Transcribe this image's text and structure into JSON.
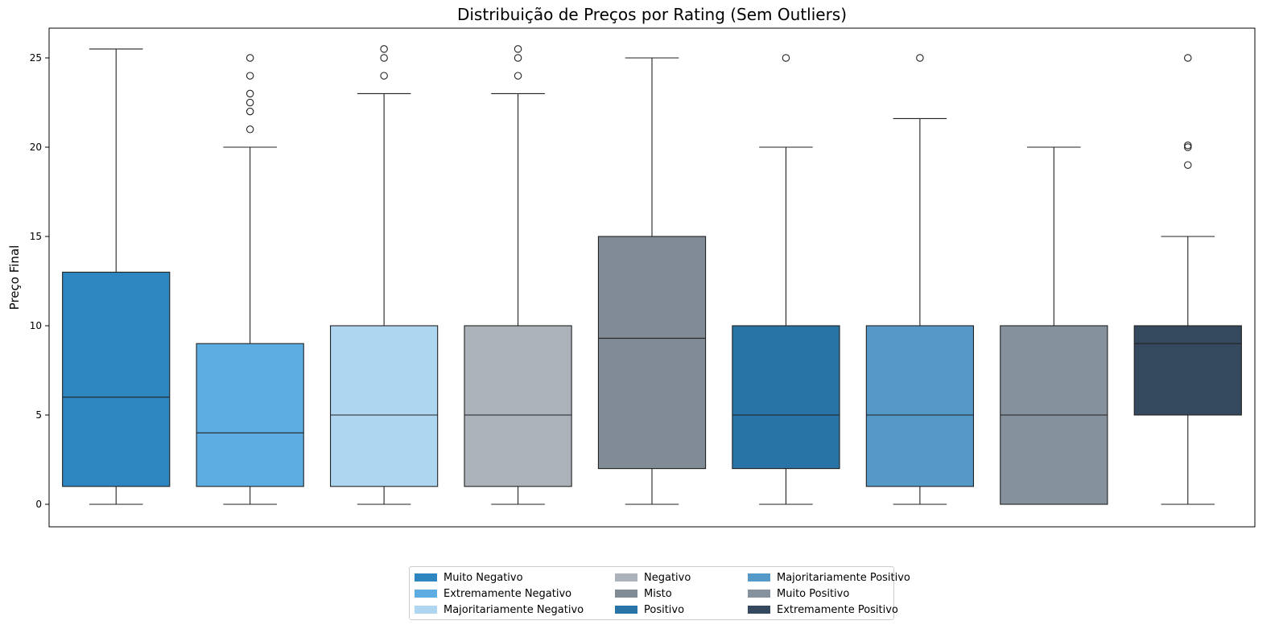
{
  "chart_data": {
    "type": "boxplot",
    "title": "Distribuição de Preços por Rating (Sem Outliers)",
    "ylabel": "Preço Final",
    "xlabel": "",
    "ylim": [
      -1.2,
      26.7
    ],
    "yticks": [
      0,
      5,
      10,
      15,
      20,
      25
    ],
    "grid": false,
    "legend_position": "bottom-center",
    "series": [
      {
        "name": "Muito Negativo",
        "color": "#2e86c1",
        "whisker_low": 0,
        "q1": 1,
        "median": 6,
        "q3": 13,
        "whisker_high": 25.5,
        "outliers": []
      },
      {
        "name": "Extremamente Negativo",
        "color": "#5dade2",
        "whisker_low": 0,
        "q1": 1,
        "median": 4,
        "q3": 9,
        "whisker_high": 20,
        "outliers": [
          21,
          22,
          22.5,
          23,
          24,
          25
        ]
      },
      {
        "name": "Majoritariamente Negativo",
        "color": "#aed6f1",
        "whisker_low": 0,
        "q1": 1,
        "median": 5,
        "q3": 10,
        "whisker_high": 23,
        "outliers": [
          24,
          25,
          25.5
        ]
      },
      {
        "name": "Negativo",
        "color": "#abb2b9",
        "whisker_low": 0,
        "q1": 1,
        "median": 5,
        "q3": 10,
        "whisker_high": 23,
        "outliers": [
          24,
          25,
          25.5
        ]
      },
      {
        "name": "Misto",
        "color": "#808b96",
        "whisker_low": 0,
        "q1": 2,
        "median": 9.3,
        "q3": 15,
        "whisker_high": 25,
        "outliers": []
      },
      {
        "name": "Positivo",
        "color": "#2874a6",
        "whisker_low": 0,
        "q1": 2,
        "median": 5,
        "q3": 10,
        "whisker_high": 20,
        "outliers": [
          25
        ]
      },
      {
        "name": "Majoritariamente Positivo",
        "color": "#5499c7",
        "whisker_low": 0,
        "q1": 1,
        "median": 5,
        "q3": 10,
        "whisker_high": 21.6,
        "outliers": [
          25
        ]
      },
      {
        "name": "Muito Positivo",
        "color": "#85929e",
        "whisker_low": 0,
        "q1": 0,
        "median": 5,
        "q3": 10,
        "whisker_high": 20,
        "outliers": []
      },
      {
        "name": "Extremamente Positivo",
        "color": "#34495e",
        "whisker_low": 0,
        "q1": 5,
        "median": 9,
        "q3": 10,
        "whisker_high": 15,
        "outliers": [
          19,
          20,
          20.1,
          25
        ]
      }
    ]
  }
}
